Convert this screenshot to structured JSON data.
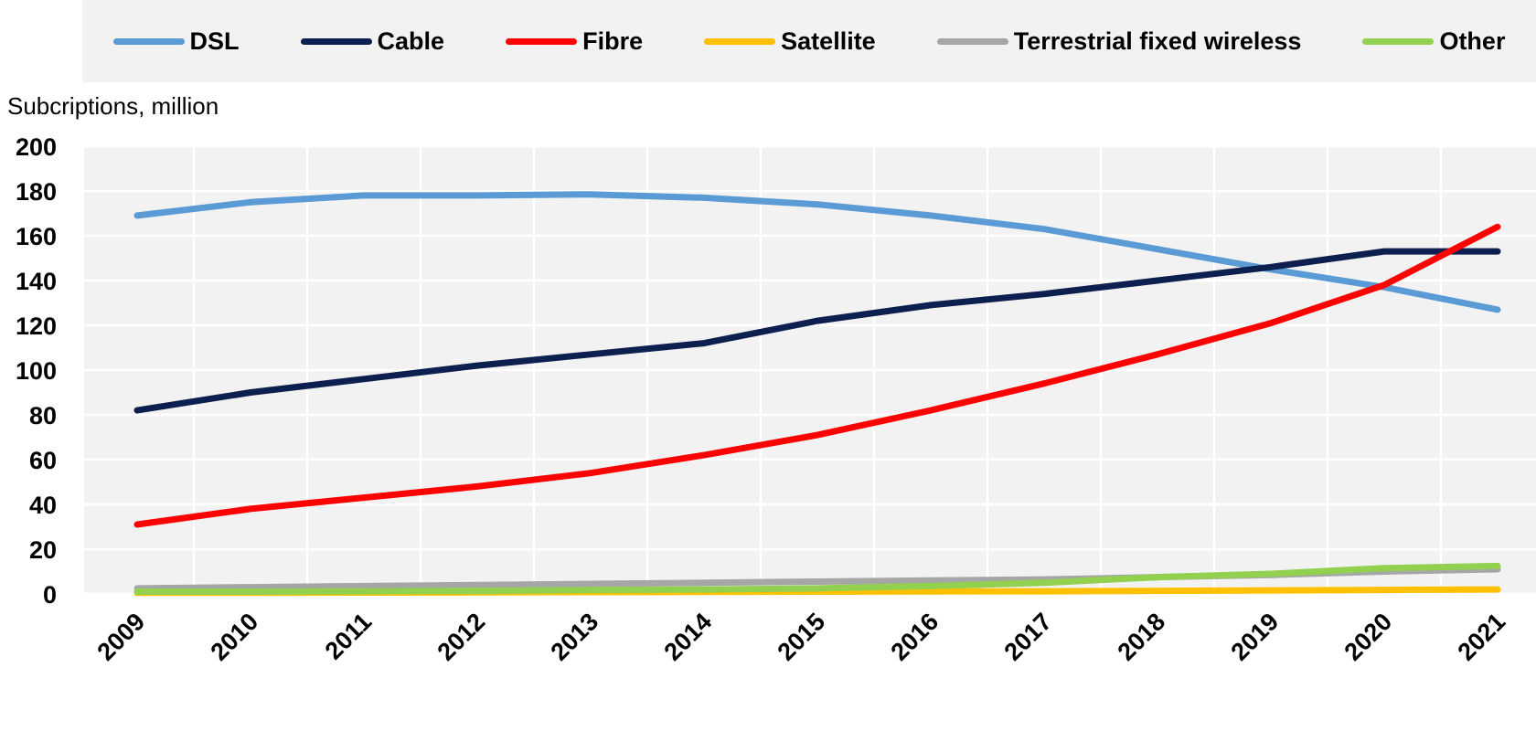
{
  "chart_data": {
    "type": "line",
    "ylabel": "Subcriptions, million",
    "x": [
      "2009",
      "2010",
      "2011",
      "2012",
      "2013",
      "2014",
      "2015",
      "2016",
      "2017",
      "2018",
      "2019",
      "2020",
      "2021"
    ],
    "ylim": [
      0,
      200
    ],
    "yticks": [
      0,
      20,
      40,
      60,
      80,
      100,
      120,
      140,
      160,
      180,
      200
    ],
    "grid": true,
    "legend_position": "top",
    "series": [
      {
        "name": "DSL",
        "color": "#5b9bd5",
        "values": [
          169,
          175,
          178,
          178,
          178.5,
          177,
          174,
          169,
          163,
          154,
          145,
          137,
          127
        ]
      },
      {
        "name": "Cable",
        "color": "#0d1f4f",
        "values": [
          82,
          90,
          96,
          102,
          107,
          112,
          122,
          129,
          134,
          140,
          146,
          153,
          153
        ]
      },
      {
        "name": "Fibre",
        "color": "#ff0000",
        "values": [
          31,
          38,
          43,
          48,
          54,
          62,
          71,
          82,
          94,
          107,
          121,
          138,
          164
        ]
      },
      {
        "name": "Satellite",
        "color": "#ffc000",
        "values": [
          0.5,
          0.5,
          0.6,
          0.7,
          0.8,
          0.9,
          1.0,
          1.1,
          1.2,
          1.4,
          1.6,
          1.8,
          2.0
        ]
      },
      {
        "name": "Terrestrial fixed wireless",
        "color": "#a6a6a6",
        "values": [
          2.5,
          3,
          3.5,
          4,
          4.5,
          5,
          5.5,
          6,
          6.5,
          7.5,
          8.5,
          10,
          11
        ]
      },
      {
        "name": "Other",
        "color": "#92d050",
        "values": [
          1,
          1,
          1.2,
          1.4,
          1.7,
          2,
          2.5,
          3.5,
          5,
          7.5,
          9,
          11.5,
          12.5
        ]
      }
    ]
  }
}
